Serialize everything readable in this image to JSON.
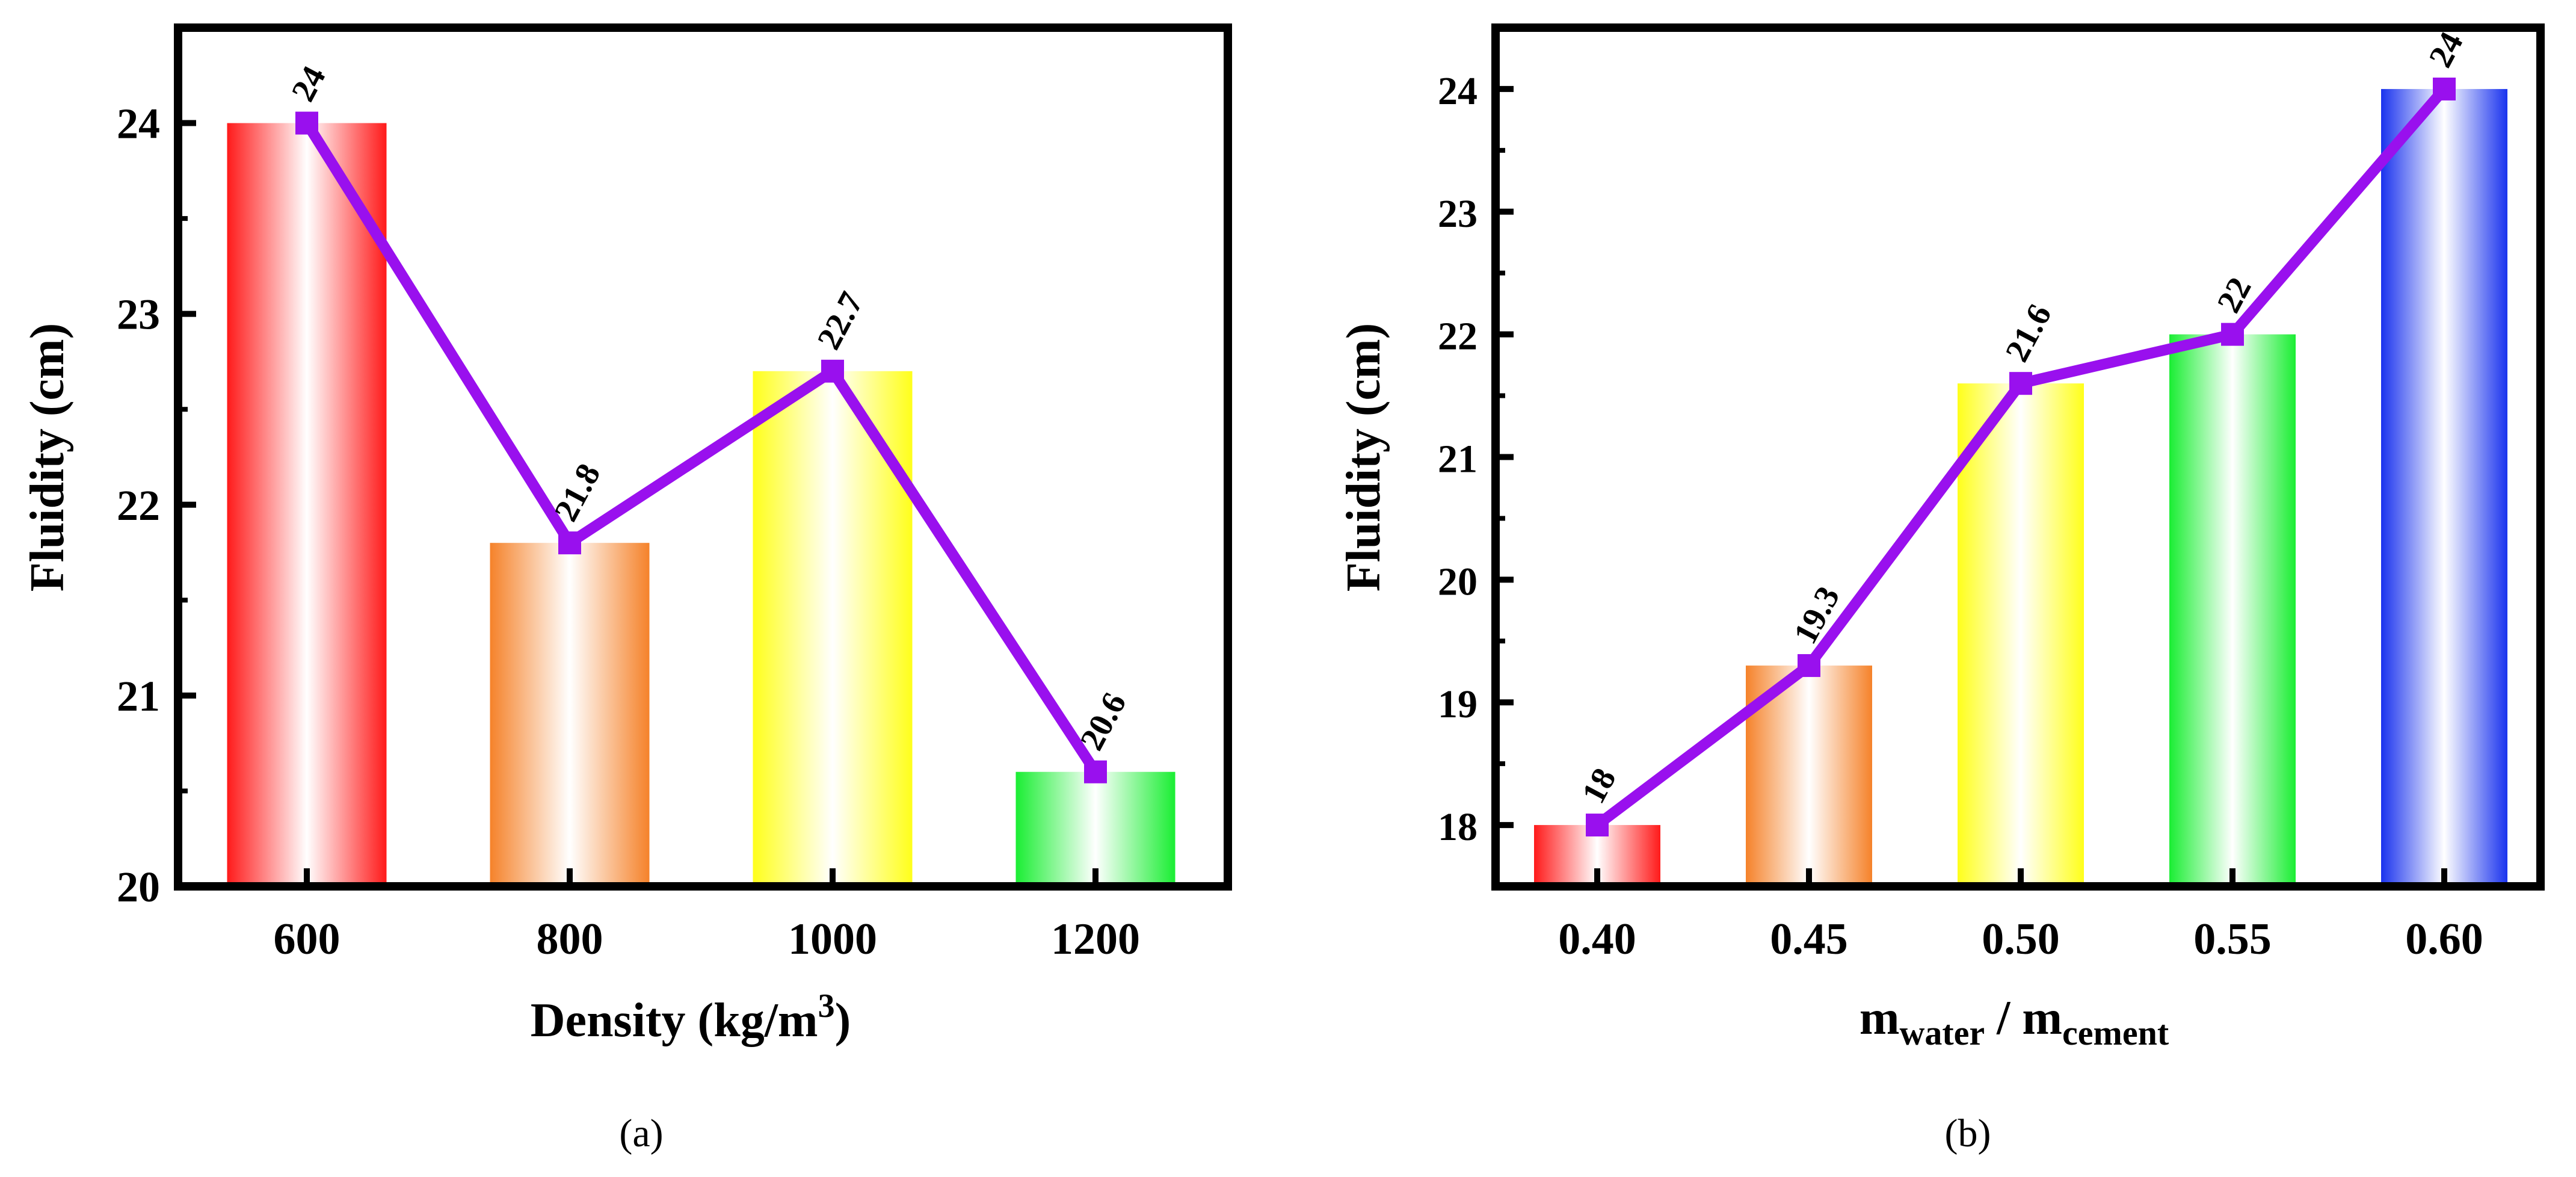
{
  "chart_data": [
    {
      "type": "bar",
      "panel_label": "(a)",
      "categories": [
        "600",
        "800",
        "1000",
        "1200"
      ],
      "values": [
        24,
        21.8,
        22.7,
        20.6
      ],
      "data_labels": [
        "24",
        "21.8",
        "22.7",
        "20.6"
      ],
      "line_overlay": true,
      "xlabel_main": "Density (kg/m",
      "xlabel_sup": "3",
      "xlabel_end": ")",
      "ylabel": "Fluidity (cm)",
      "ylim": [
        20,
        24.5
      ],
      "yticks": [
        20,
        21,
        22,
        23,
        24
      ],
      "ytick_labels": [
        "20",
        "21",
        "22",
        "23",
        "24"
      ],
      "bar_colors": [
        "#ff1a1a",
        "#f5822a",
        "#ffff1a",
        "#1aee33"
      ],
      "line_color": "#9910ee"
    },
    {
      "type": "bar",
      "panel_label": "(b)",
      "categories": [
        "0.40",
        "0.45",
        "0.50",
        "0.55",
        "0.60"
      ],
      "values": [
        18,
        19.3,
        21.6,
        22,
        24
      ],
      "data_labels": [
        "18",
        "19.3",
        "21.6",
        "22",
        "24"
      ],
      "line_overlay": true,
      "xlabel_m1": "m",
      "xlabel_sub1": "water",
      "xlabel_sep": " / m",
      "xlabel_sub2": "cement",
      "ylabel": "Fluidity (cm)",
      "ylim": [
        17.5,
        24.5
      ],
      "yticks": [
        18,
        19,
        20,
        21,
        22,
        23,
        24
      ],
      "ytick_labels": [
        "18",
        "19",
        "20",
        "21",
        "22",
        "23",
        "24"
      ],
      "bar_colors": [
        "#ff1a1a",
        "#f5822a",
        "#ffff1a",
        "#1aee33",
        "#1a33ee"
      ],
      "line_color": "#9910ee"
    }
  ]
}
